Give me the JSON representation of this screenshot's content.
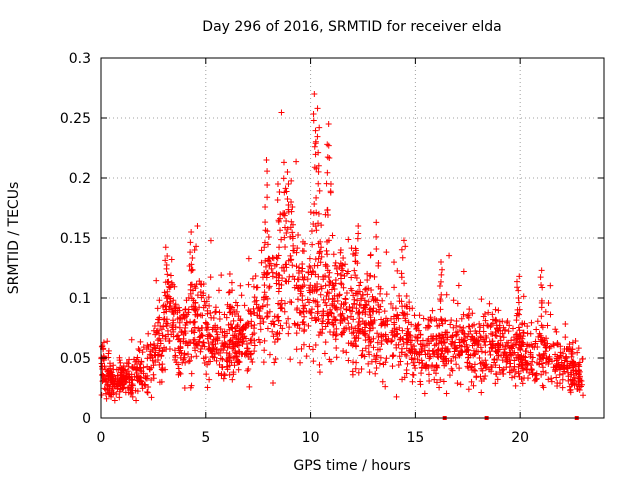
{
  "chart_data": {
    "type": "scatter",
    "title": "Day 296 of 2016, SRMTID for receiver elda",
    "xlabel": "GPS time / hours",
    "ylabel": "SRMTID / TECUs",
    "xlim": [
      0,
      24
    ],
    "ylim": [
      0,
      0.3
    ],
    "x_ticks": [
      0,
      5,
      10,
      15,
      20
    ],
    "y_ticks": [
      0,
      0.05,
      0.1,
      0.15,
      0.2,
      0.25,
      0.3
    ],
    "x_tick_labels": [
      "0",
      "5",
      "10",
      "15",
      "20"
    ],
    "y_tick_labels": [
      "0",
      "0.05",
      "0.1",
      "0.15",
      "0.2",
      "0.25",
      "0.3"
    ],
    "grid": true,
    "marker": "+",
    "color": "#ff0000",
    "series": [
      {
        "name": "SRMTID",
        "trend": [
          [
            0,
            0.04
          ],
          [
            0.5,
            0.03
          ],
          [
            1,
            0.033
          ],
          [
            1.5,
            0.035
          ],
          [
            2,
            0.04
          ],
          [
            2.5,
            0.05
          ],
          [
            3,
            0.075
          ],
          [
            3.4,
            0.09
          ],
          [
            3.8,
            0.065
          ],
          [
            4.2,
            0.075
          ],
          [
            4.6,
            0.085
          ],
          [
            5,
            0.07
          ],
          [
            5.5,
            0.065
          ],
          [
            6,
            0.06
          ],
          [
            6.5,
            0.065
          ],
          [
            7,
            0.065
          ],
          [
            7.5,
            0.085
          ],
          [
            8,
            0.1
          ],
          [
            8.5,
            0.11
          ],
          [
            9,
            0.115
          ],
          [
            9.5,
            0.105
          ],
          [
            10,
            0.1
          ],
          [
            10.5,
            0.105
          ],
          [
            11,
            0.095
          ],
          [
            11.5,
            0.09
          ],
          [
            12,
            0.085
          ],
          [
            12.5,
            0.08
          ],
          [
            13,
            0.075
          ],
          [
            13.5,
            0.075
          ],
          [
            14,
            0.075
          ],
          [
            14.5,
            0.07
          ],
          [
            15,
            0.063
          ],
          [
            15.5,
            0.055
          ],
          [
            16,
            0.055
          ],
          [
            16.5,
            0.06
          ],
          [
            17,
            0.063
          ],
          [
            17.5,
            0.06
          ],
          [
            18,
            0.06
          ],
          [
            18.5,
            0.06
          ],
          [
            19,
            0.055
          ],
          [
            19.5,
            0.055
          ],
          [
            20,
            0.055
          ],
          [
            20.5,
            0.052
          ],
          [
            21,
            0.055
          ],
          [
            21.5,
            0.05
          ],
          [
            22,
            0.045
          ],
          [
            22.5,
            0.04
          ],
          [
            23,
            0.035
          ]
        ],
        "peaks": [
          [
            0.1,
            0.063
          ],
          [
            4.3,
            0.155
          ],
          [
            4.4,
            0.14
          ],
          [
            3.1,
            0.135
          ],
          [
            6.2,
            0.12
          ],
          [
            7.9,
            0.215
          ],
          [
            8.5,
            0.195
          ],
          [
            8.7,
            0.213
          ],
          [
            8.9,
            0.205
          ],
          [
            9.1,
            0.18
          ],
          [
            10.2,
            0.27
          ],
          [
            10.3,
            0.258
          ],
          [
            10.4,
            0.242
          ],
          [
            10.8,
            0.228
          ],
          [
            10.9,
            0.245
          ],
          [
            13.2,
            0.163
          ],
          [
            14.4,
            0.148
          ],
          [
            16.2,
            0.13
          ],
          [
            19.9,
            0.118
          ],
          [
            21.0,
            0.123
          ],
          [
            12.2,
            0.16
          ],
          [
            11.5,
            0.14
          ]
        ],
        "points": [
          [
            0.05,
            0.043
          ],
          [
            0.3,
            0.028
          ],
          [
            0.6,
            0.021
          ],
          [
            1.0,
            0.038
          ],
          [
            1.4,
            0.024
          ],
          [
            1.8,
            0.047
          ],
          [
            2.2,
            0.033
          ],
          [
            2.6,
            0.052
          ],
          [
            3.0,
            0.082
          ],
          [
            3.3,
            0.097
          ],
          [
            3.7,
            0.058
          ],
          [
            4.0,
            0.025
          ],
          [
            4.5,
            0.086
          ],
          [
            4.9,
            0.092
          ],
          [
            5.3,
            0.061
          ],
          [
            5.8,
            0.049
          ],
          [
            6.4,
            0.072
          ],
          [
            7.0,
            0.058
          ],
          [
            7.6,
            0.091
          ],
          [
            8.2,
            0.118
          ],
          [
            8.8,
            0.128
          ],
          [
            9.4,
            0.099
          ],
          [
            9.9,
            0.121
          ],
          [
            10.6,
            0.089
          ],
          [
            11.2,
            0.112
          ],
          [
            11.8,
            0.079
          ],
          [
            12.4,
            0.094
          ],
          [
            13.0,
            0.066
          ],
          [
            13.6,
            0.083
          ],
          [
            14.2,
            0.061
          ],
          [
            14.8,
            0.078
          ],
          [
            15.3,
            0.048
          ],
          [
            15.9,
            0.032
          ],
          [
            16.5,
            0.071
          ],
          [
            17.1,
            0.052
          ],
          [
            17.7,
            0.068
          ],
          [
            18.3,
            0.044
          ],
          [
            18.9,
            0.075
          ],
          [
            19.5,
            0.038
          ],
          [
            20.1,
            0.066
          ],
          [
            20.7,
            0.031
          ],
          [
            21.3,
            0.062
          ],
          [
            21.9,
            0.029
          ],
          [
            22.5,
            0.047
          ],
          [
            23.0,
            0.019
          ]
        ]
      }
    ],
    "gap_markers": [
      16.4,
      18.4,
      22.7
    ]
  }
}
